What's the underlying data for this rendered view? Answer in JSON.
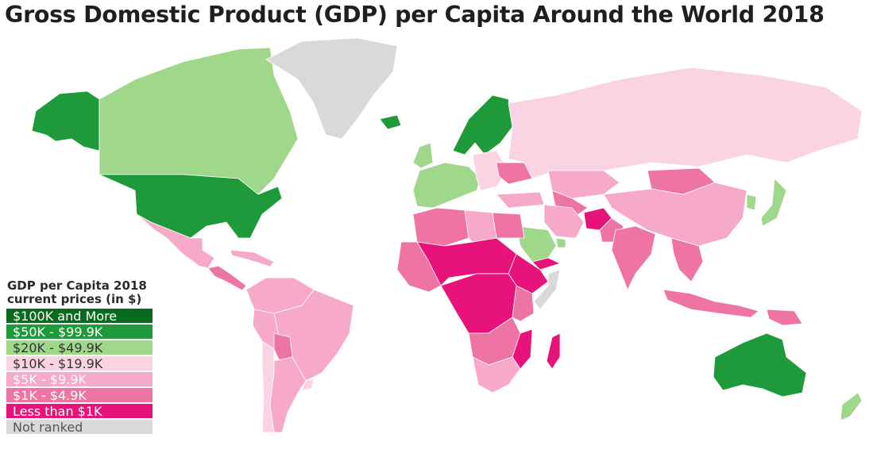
{
  "title": "Gross Domestic Product (GDP) per Capita Around the World 2018",
  "legend": {
    "title_line1": "GDP per Capita 2018",
    "title_line2": "current prices (in $)",
    "items": [
      {
        "label": "$100K and More",
        "color": "#0a6b1f",
        "text_color": "#ffffff"
      },
      {
        "label": "$50K - $99.9K",
        "color": "#1e9a3a",
        "text_color": "#ffffff"
      },
      {
        "label": "$20K - $49.9K",
        "color": "#9fd78b",
        "text_color": "#333333"
      },
      {
        "label": "$10K - $19.9K",
        "color": "#fbd4e4",
        "text_color": "#333333"
      },
      {
        "label": "$5K - $9.9K",
        "color": "#f6a9c8",
        "text_color": "#ffffff"
      },
      {
        "label": "$1K - $4.9K",
        "color": "#ee74a3",
        "text_color": "#ffffff"
      },
      {
        "label": "Less than $1K",
        "color": "#e8137a",
        "text_color": "#ffffff"
      },
      {
        "label": "Not ranked",
        "color": "#d9d9d9",
        "text_color": "#555555"
      }
    ]
  },
  "regions": [
    {
      "name": "Alaska",
      "tier": 1
    },
    {
      "name": "Canada",
      "tier": 2
    },
    {
      "name": "Greenland",
      "tier": 7
    },
    {
      "name": "Iceland",
      "tier": 1
    },
    {
      "name": "United States",
      "tier": 1
    },
    {
      "name": "Mexico",
      "tier": 4
    },
    {
      "name": "Central America",
      "tier": 5
    },
    {
      "name": "Caribbean",
      "tier": 4
    },
    {
      "name": "Colombia-Venezuela",
      "tier": 4
    },
    {
      "name": "Brazil",
      "tier": 4
    },
    {
      "name": "Peru",
      "tier": 4
    },
    {
      "name": "Bolivia",
      "tier": 5
    },
    {
      "name": "Argentina",
      "tier": 4
    },
    {
      "name": "Chile",
      "tier": 3
    },
    {
      "name": "Uruguay",
      "tier": 3
    },
    {
      "name": "Scandinavia",
      "tier": 1
    },
    {
      "name": "UK-Ireland",
      "tier": 2
    },
    {
      "name": "Western Europe",
      "tier": 2
    },
    {
      "name": "Eastern Europe",
      "tier": 3
    },
    {
      "name": "Ukraine",
      "tier": 5
    },
    {
      "name": "Russia",
      "tier": 3
    },
    {
      "name": "Kazakhstan",
      "tier": 4
    },
    {
      "name": "Central Asia",
      "tier": 5
    },
    {
      "name": "Mongolia",
      "tier": 5
    },
    {
      "name": "China",
      "tier": 4
    },
    {
      "name": "Japan",
      "tier": 2
    },
    {
      "name": "Korea",
      "tier": 2
    },
    {
      "name": "Turkey",
      "tier": 4
    },
    {
      "name": "Iran",
      "tier": 4
    },
    {
      "name": "Saudi Arabia",
      "tier": 2
    },
    {
      "name": "Gulf States",
      "tier": 2
    },
    {
      "name": "Yemen",
      "tier": 6
    },
    {
      "name": "Afghanistan",
      "tier": 6
    },
    {
      "name": "Pakistan",
      "tier": 5
    },
    {
      "name": "India",
      "tier": 5
    },
    {
      "name": "Southeast Asia",
      "tier": 5
    },
    {
      "name": "Indonesia",
      "tier": 5
    },
    {
      "name": "Papua New Guinea",
      "tier": 5
    },
    {
      "name": "Australia",
      "tier": 1
    },
    {
      "name": "New Zealand",
      "tier": 2
    },
    {
      "name": "North Africa",
      "tier": 5
    },
    {
      "name": "Libya",
      "tier": 4
    },
    {
      "name": "Egypt",
      "tier": 5
    },
    {
      "name": "West Africa",
      "tier": 5
    },
    {
      "name": "Sahel",
      "tier": 6
    },
    {
      "name": "Central Africa",
      "tier": 6
    },
    {
      "name": "Ethiopia",
      "tier": 6
    },
    {
      "name": "Somalia",
      "tier": 7
    },
    {
      "name": "Kenya",
      "tier": 5
    },
    {
      "name": "Angola-Zambia",
      "tier": 5
    },
    {
      "name": "Mozambique",
      "tier": 6
    },
    {
      "name": "Southern Africa",
      "tier": 4
    },
    {
      "name": "Madagascar",
      "tier": 6
    }
  ]
}
